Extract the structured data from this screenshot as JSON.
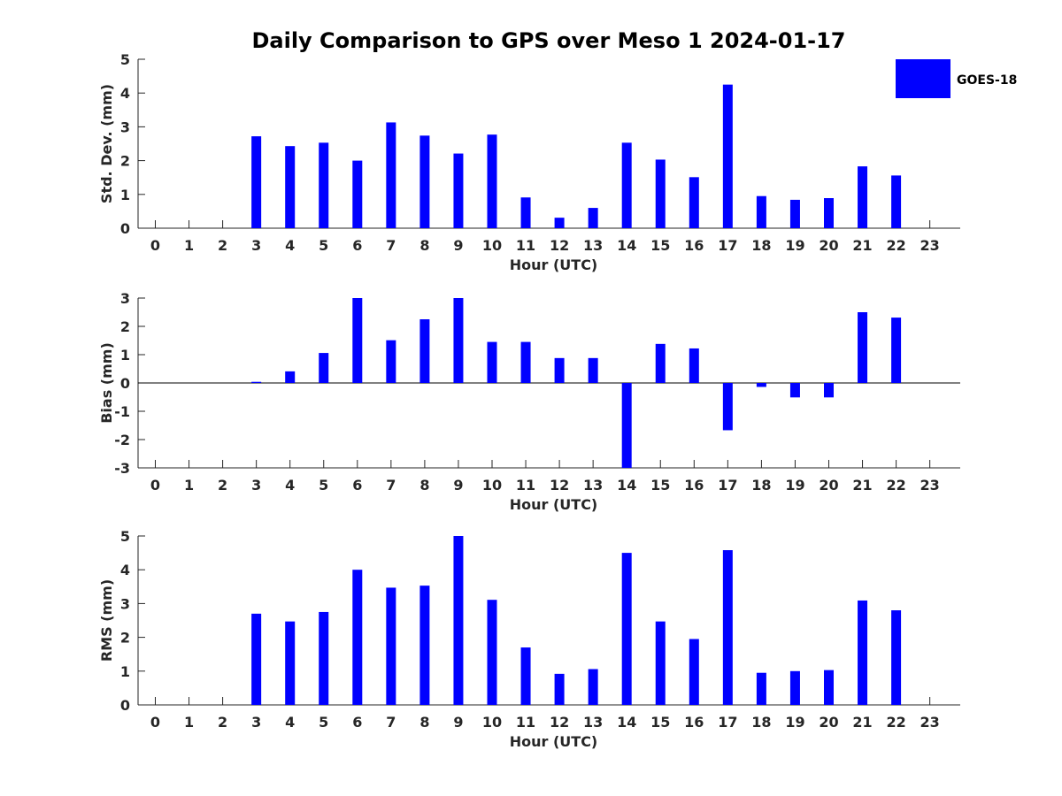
{
  "title": "Daily Comparison to GPS over Meso 1 2024-01-17",
  "legend": {
    "label": "GOES-18",
    "color": "#0000ff",
    "placement": "top-right"
  },
  "chart_data": [
    {
      "type": "bar",
      "ylabel": "Std. Dev. (mm)",
      "xlabel": "Hour (UTC)",
      "ylim": [
        0,
        5
      ],
      "yticks": [
        0,
        1,
        2,
        3,
        4,
        5
      ],
      "categories": [
        "0",
        "1",
        "2",
        "3",
        "4",
        "5",
        "6",
        "7",
        "8",
        "9",
        "10",
        "11",
        "12",
        "13",
        "14",
        "15",
        "16",
        "17",
        "18",
        "19",
        "20",
        "21",
        "22",
        "23"
      ],
      "series": [
        {
          "name": "GOES-18",
          "values": [
            null,
            null,
            null,
            2.72,
            2.43,
            2.53,
            2.0,
            3.13,
            2.74,
            2.21,
            2.77,
            0.91,
            0.31,
            0.6,
            2.53,
            2.03,
            1.51,
            4.25,
            0.95,
            0.84,
            0.89,
            1.83,
            1.56,
            null
          ]
        }
      ]
    },
    {
      "type": "bar",
      "ylabel": "Bias (mm)",
      "xlabel": "Hour (UTC)",
      "ylim": [
        -3,
        3
      ],
      "yticks": [
        -3,
        -2,
        -1,
        0,
        1,
        2,
        3
      ],
      "categories": [
        "0",
        "1",
        "2",
        "3",
        "4",
        "5",
        "6",
        "7",
        "8",
        "9",
        "10",
        "11",
        "12",
        "13",
        "14",
        "15",
        "16",
        "17",
        "18",
        "19",
        "20",
        "21",
        "22",
        "23"
      ],
      "series": [
        {
          "name": "GOES-18",
          "values": [
            null,
            null,
            null,
            0.04,
            0.41,
            1.06,
            3.0,
            1.51,
            2.25,
            3.0,
            1.45,
            1.45,
            0.88,
            0.88,
            -3.0,
            1.38,
            1.22,
            -1.67,
            -0.14,
            -0.51,
            -0.51,
            2.5,
            2.31,
            null
          ]
        }
      ]
    },
    {
      "type": "bar",
      "ylabel": "RMS (mm)",
      "xlabel": "Hour (UTC)",
      "ylim": [
        0,
        5
      ],
      "yticks": [
        0,
        1,
        2,
        3,
        4,
        5
      ],
      "categories": [
        "0",
        "1",
        "2",
        "3",
        "4",
        "5",
        "6",
        "7",
        "8",
        "9",
        "10",
        "11",
        "12",
        "13",
        "14",
        "15",
        "16",
        "17",
        "18",
        "19",
        "20",
        "21",
        "22",
        "23"
      ],
      "series": [
        {
          "name": "GOES-18",
          "values": [
            null,
            null,
            null,
            2.7,
            2.47,
            2.75,
            4.0,
            3.47,
            3.53,
            5.0,
            3.11,
            1.7,
            0.92,
            1.06,
            4.5,
            2.47,
            1.95,
            4.58,
            0.95,
            1.0,
            1.03,
            3.09,
            2.8,
            null
          ]
        }
      ]
    }
  ]
}
